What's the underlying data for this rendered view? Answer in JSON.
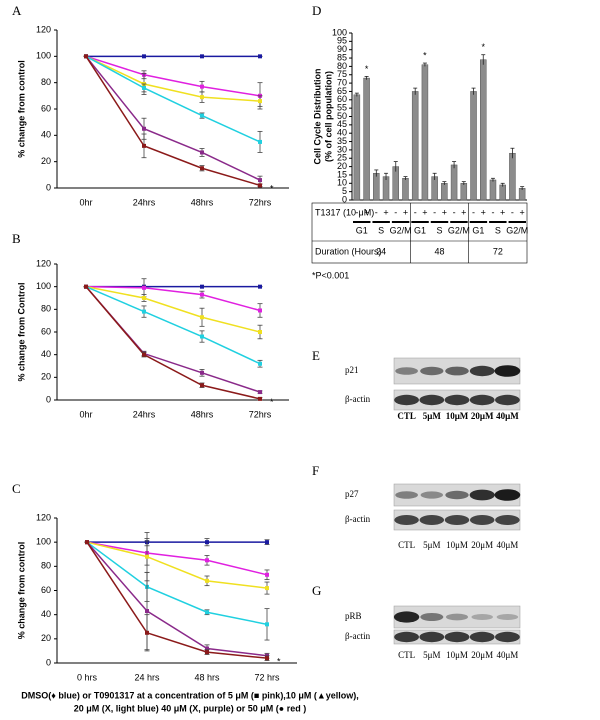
{
  "chart_data": [
    {
      "type": "line",
      "label": "A",
      "ylabel": "% change from control",
      "annotation": "*",
      "categories": [
        "0hr",
        "24hrs",
        "48hrs",
        "72hrs"
      ],
      "ylim": [
        0,
        120
      ],
      "yticks": [
        0,
        20,
        40,
        60,
        80,
        100,
        120
      ],
      "series": [
        {
          "color": "#1a1aa0",
          "values": [
            100,
            100,
            100,
            100
          ],
          "errors": [
            0,
            0,
            0,
            0
          ]
        },
        {
          "color": "#e020e0",
          "values": [
            100,
            86,
            77,
            70
          ],
          "errors": [
            0,
            3,
            4,
            10
          ]
        },
        {
          "color": "#f0e020",
          "values": [
            100,
            79,
            69,
            66
          ],
          "errors": [
            0,
            8,
            4,
            4
          ]
        },
        {
          "color": "#20d0e0",
          "values": [
            100,
            76,
            55,
            35
          ],
          "errors": [
            0,
            3,
            2,
            8
          ]
        },
        {
          "color": "#8a2a8a",
          "values": [
            100,
            45,
            27,
            6
          ],
          "errors": [
            0,
            8,
            3,
            3
          ]
        },
        {
          "color": "#8b1a1a",
          "values": [
            100,
            32,
            15,
            2
          ],
          "errors": [
            0,
            9,
            2,
            1
          ]
        }
      ]
    },
    {
      "type": "line",
      "label": "B",
      "ylabel": "% change from Control",
      "annotation": "*",
      "categories": [
        "0hr",
        "24hrs",
        "48hrs",
        "72hrs"
      ],
      "ylim": [
        0,
        120
      ],
      "yticks": [
        0,
        20,
        40,
        60,
        80,
        100,
        120
      ],
      "series": [
        {
          "color": "#1a1aa0",
          "values": [
            100,
            100,
            100,
            100
          ],
          "errors": [
            0,
            0,
            0,
            0
          ]
        },
        {
          "color": "#e020e0",
          "values": [
            100,
            99,
            93,
            79
          ],
          "errors": [
            0,
            8,
            3,
            6
          ]
        },
        {
          "color": "#f0e020",
          "values": [
            100,
            90,
            73,
            60
          ],
          "errors": [
            0,
            3,
            8,
            6
          ]
        },
        {
          "color": "#20d0e0",
          "values": [
            100,
            78,
            56,
            32
          ],
          "errors": [
            0,
            5,
            5,
            3
          ]
        },
        {
          "color": "#8a2a8a",
          "values": [
            100,
            41,
            24,
            7
          ],
          "errors": [
            0,
            2,
            3,
            1
          ]
        },
        {
          "color": "#8b1a1a",
          "values": [
            100,
            40,
            13,
            1
          ],
          "errors": [
            0,
            2,
            2,
            1
          ]
        }
      ]
    },
    {
      "type": "line",
      "label": "C",
      "ylabel": "% change from control",
      "annotation": "*",
      "categories": [
        "0 hrs",
        "24 hrs",
        "48 hrs",
        "72 hrs"
      ],
      "ylim": [
        0,
        120
      ],
      "yticks": [
        0,
        20,
        40,
        60,
        80,
        100,
        120
      ],
      "series": [
        {
          "color": "#1a1aa0",
          "values": [
            100,
            100,
            100,
            100
          ],
          "errors": [
            0,
            3,
            3,
            2
          ]
        },
        {
          "color": "#e020e0",
          "values": [
            100,
            91,
            85,
            73
          ],
          "errors": [
            0,
            10,
            4,
            4
          ]
        },
        {
          "color": "#f0e020",
          "values": [
            100,
            88,
            68,
            62
          ],
          "errors": [
            0,
            20,
            4,
            5
          ]
        },
        {
          "color": "#20d0e0",
          "values": [
            100,
            63,
            42,
            32
          ],
          "errors": [
            0,
            12,
            2,
            13
          ]
        },
        {
          "color": "#8a2a8a",
          "values": [
            100,
            43,
            12,
            6
          ],
          "errors": [
            0,
            32,
            3,
            2
          ]
        },
        {
          "color": "#8b1a1a",
          "values": [
            100,
            25,
            9,
            4
          ],
          "errors": [
            0,
            15,
            2,
            2
          ]
        }
      ]
    },
    {
      "type": "bar",
      "label": "D",
      "ylabel": [
        "Cell Cycle Distribution",
        "(% of cell population)"
      ],
      "color": "#8c8c8c",
      "ylim": [
        0,
        100
      ],
      "yticks": [
        0,
        5,
        10,
        15,
        20,
        25,
        30,
        35,
        40,
        45,
        50,
        55,
        60,
        65,
        70,
        75,
        80,
        85,
        90,
        95,
        100
      ],
      "categories": [
        "-",
        "+",
        "-",
        "+",
        "-",
        "+",
        "-",
        "+",
        "-",
        "+",
        "-",
        "+",
        "-",
        "+",
        "-",
        "+",
        "-",
        "+"
      ],
      "values": [
        63,
        73,
        16,
        14,
        20,
        13,
        65,
        81,
        14,
        10,
        21,
        10,
        65,
        84,
        12,
        9,
        28,
        7
      ],
      "errors": [
        1,
        1,
        2,
        2,
        3,
        1,
        2,
        1,
        2,
        1,
        2,
        1,
        2,
        3,
        1,
        1,
        3,
        1
      ],
      "significant": [
        "*",
        "*",
        "*"
      ],
      "phase_labels": [
        "G1",
        "S",
        "G2/M"
      ],
      "group_labels": [
        "24",
        "48",
        "72"
      ],
      "row_labels": [
        "T1317 (10 μM)",
        "Duration (Hours)"
      ],
      "footnote": "*P<0.001"
    }
  ],
  "blots": [
    {
      "label": "E",
      "rows": [
        "p21",
        "β-actin"
      ],
      "lanes": [
        "CTL",
        "5μM",
        "10μM",
        "20μM",
        "40μM"
      ]
    },
    {
      "label": "F",
      "rows": [
        "p27",
        "β-actin"
      ],
      "lanes": [
        "CTL",
        "5μM",
        "10μM",
        "20μM",
        "40μM"
      ]
    },
    {
      "label": "G",
      "rows": [
        "pRB",
        "β-actin"
      ],
      "lanes": [
        "CTL",
        "5μM",
        "10μM",
        "20μM",
        "40μM"
      ]
    }
  ],
  "caption": [
    "DMSO(♦ blue) or T0901317 at a concentration of 5 μM (■ pink),10 μM (▲yellow),",
    "20 μM (X, light blue) 40 μM (X, purple) or 50  μM (● red )"
  ]
}
